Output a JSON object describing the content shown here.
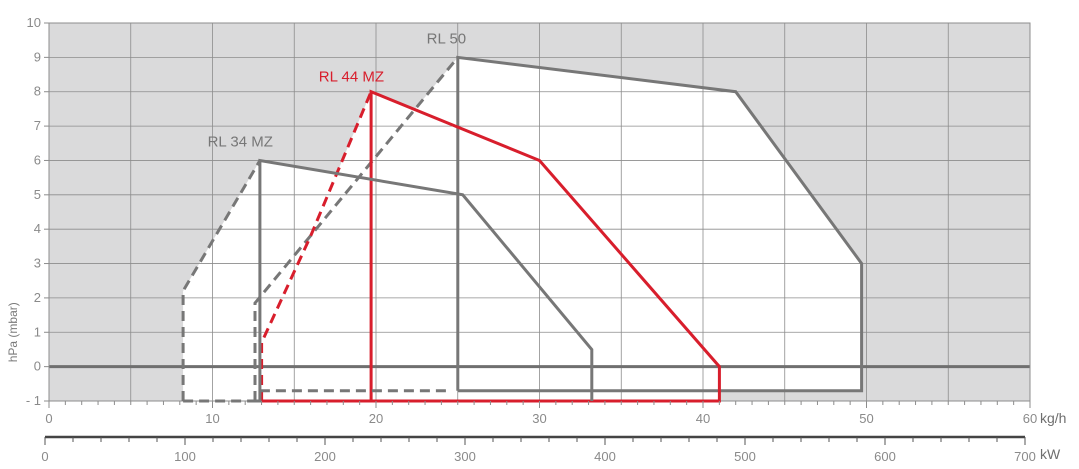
{
  "chart_data": {
    "type": "line",
    "title": "",
    "ylabel": "hPa (mbar)",
    "ylim": [
      -1,
      10
    ],
    "yticks": [
      -1,
      0,
      1,
      2,
      3,
      4,
      5,
      6,
      7,
      8,
      9,
      10
    ],
    "ytick_labels": [
      "- 1",
      "0",
      "1",
      "2",
      "3",
      "4",
      "5",
      "6",
      "7",
      "8",
      "9",
      "10"
    ],
    "x_primary": {
      "unit": "kg/h",
      "range": [
        0,
        60
      ],
      "ticks": [
        0,
        10,
        20,
        30,
        40,
        50,
        60
      ],
      "tick_labels": [
        "0",
        "10",
        "20",
        "30",
        "40",
        "50",
        "60"
      ]
    },
    "x_secondary": {
      "unit": "kW",
      "range": [
        0,
        700
      ],
      "ticks": [
        0,
        100,
        200,
        300,
        400,
        500,
        600,
        700
      ],
      "tick_labels": [
        "0",
        "100",
        "200",
        "300",
        "400",
        "500",
        "600",
        "700"
      ]
    },
    "grid": true,
    "colors": {
      "plot_background": "#dadadb",
      "area_fill": "#ffffff",
      "grid": "#8c8c8c",
      "gray_series": "#777777",
      "red_series": "#d81e2c"
    },
    "series": [
      {
        "name": "RL 50",
        "color": "#777777",
        "solid": [
          [
            25,
            -0.7
          ],
          [
            25,
            9
          ],
          [
            42,
            8
          ],
          [
            49.7,
            3
          ],
          [
            49.7,
            -0.7
          ],
          [
            25,
            -0.7
          ]
        ],
        "dashed": [
          [
            12.6,
            -1
          ],
          [
            12.6,
            1.85
          ],
          [
            25,
            9
          ]
        ],
        "dashed_bottom": [
          [
            12.6,
            -1
          ],
          [
            25,
            -1
          ]
        ],
        "label_at": [
          23.1,
          9.4
        ]
      },
      {
        "name": "RL 44 MZ",
        "color": "#d81e2c",
        "solid": [
          [
            19.7,
            -1
          ],
          [
            19.7,
            8
          ],
          [
            30,
            6
          ],
          [
            41,
            0
          ],
          [
            41,
            -1
          ],
          [
            13,
            -1
          ]
        ],
        "dashed": [
          [
            13,
            -1
          ],
          [
            13,
            0.7
          ],
          [
            16,
            3.8
          ],
          [
            19.7,
            8
          ]
        ],
        "label_at": [
          16.5,
          8.3
        ]
      },
      {
        "name": "RL 34 MZ",
        "color": "#777777",
        "solid": [
          [
            12.9,
            -1
          ],
          [
            12.9,
            6
          ],
          [
            25.3,
            5
          ],
          [
            33.2,
            0.5
          ],
          [
            33.2,
            -1
          ]
        ],
        "dashed": [
          [
            8.2,
            -1
          ],
          [
            8.2,
            2.2
          ],
          [
            12.9,
            6
          ]
        ],
        "dashed_bottom": [
          [
            8.2,
            -1
          ],
          [
            12.9,
            -1
          ]
        ],
        "dashed_inner": [
          [
            12.9,
            -0.7
          ],
          [
            24.5,
            -0.7
          ]
        ],
        "label_at": [
          9.7,
          6.4
        ]
      }
    ]
  }
}
